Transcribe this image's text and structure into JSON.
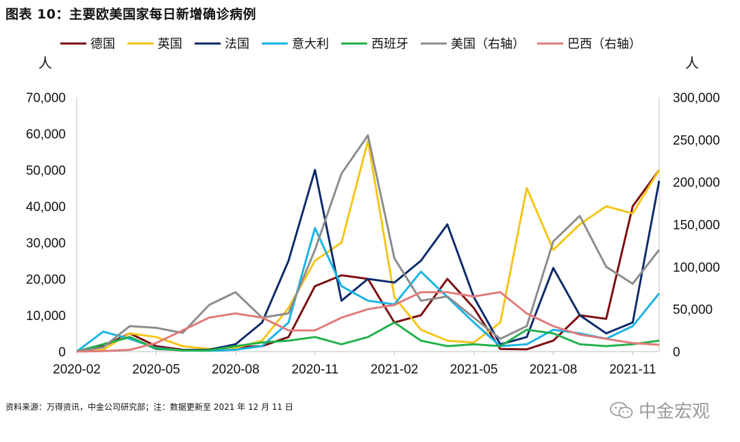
{
  "header": {
    "title": "图表 10：主要欧美国家每日新增确诊病例"
  },
  "units": {
    "left": "人",
    "right": "人"
  },
  "footer": {
    "source": "资料来源：万得资讯，中金公司研究部；注：数据更新至 2021 年 12 月 11 日"
  },
  "watermark": {
    "text": "中金宏观",
    "icon": "wechat-icon"
  },
  "chart_data": {
    "type": "line",
    "x": [
      "2020-02",
      "2020-03",
      "2020-04",
      "2020-05",
      "2020-06",
      "2020-07",
      "2020-08",
      "2020-09",
      "2020-10",
      "2020-11",
      "2020-12",
      "2021-01",
      "2021-02",
      "2021-03",
      "2021-04",
      "2021-05",
      "2021-06",
      "2021-07",
      "2021-08",
      "2021-09",
      "2021-10",
      "2021-11",
      "2021-12"
    ],
    "x_tick_labels": [
      "2020-02",
      "2020-05",
      "2020-08",
      "2020-11",
      "2021-02",
      "2021-05",
      "2021-08",
      "2021-11"
    ],
    "y_left": {
      "ticks": [
        "0",
        "10,000",
        "20,000",
        "30,000",
        "40,000",
        "50,000",
        "60,000",
        "70,000"
      ],
      "range": [
        0,
        70000
      ]
    },
    "y_right": {
      "ticks": [
        "0",
        "50,000",
        "100,000",
        "150,000",
        "200,000",
        "250,000",
        "300,000"
      ],
      "range": [
        0,
        300000
      ]
    },
    "grid": false,
    "legend_position": "top",
    "series": [
      {
        "name": "德国",
        "color": "#7b0c10",
        "axis": "left",
        "values": [
          0,
          1500,
          5000,
          1500,
          500,
          400,
          1200,
          1500,
          4000,
          18000,
          21000,
          20000,
          8000,
          10000,
          20000,
          12000,
          700,
          600,
          3000,
          10000,
          9000,
          40000,
          50000
        ]
      },
      {
        "name": "英国",
        "color": "#f5c518",
        "axis": "left",
        "values": [
          0,
          500,
          5000,
          4000,
          1500,
          700,
          1000,
          3000,
          12000,
          25000,
          30000,
          58000,
          15000,
          6000,
          3000,
          2500,
          8000,
          45000,
          28000,
          35000,
          40000,
          38000,
          50000
        ]
      },
      {
        "name": "法国",
        "color": "#0d2b6b",
        "axis": "left",
        "values": [
          0,
          2000,
          4000,
          700,
          400,
          500,
          2000,
          8000,
          25000,
          50000,
          14000,
          20000,
          19000,
          25000,
          35000,
          15000,
          2000,
          4000,
          23000,
          10000,
          5000,
          8000,
          47000
        ]
      },
      {
        "name": "意大利",
        "color": "#1ab3e6",
        "axis": "left",
        "values": [
          0,
          5500,
          3500,
          1000,
          300,
          200,
          500,
          1500,
          8000,
          34000,
          18000,
          14000,
          13000,
          22000,
          15000,
          8000,
          1500,
          2000,
          6000,
          5000,
          3500,
          7000,
          16000
        ]
      },
      {
        "name": "西班牙",
        "color": "#22b14c",
        "axis": "left",
        "values": [
          0,
          2000,
          4000,
          800,
          300,
          300,
          1500,
          2500,
          3000,
          4000,
          2000,
          4000,
          8000,
          3000,
          1500,
          2000,
          1500,
          6000,
          5000,
          2000,
          1500,
          2000,
          3000
        ]
      },
      {
        "name": "美国（右轴）",
        "color": "#8c8c8c",
        "axis": "right",
        "values": [
          0,
          5000,
          30000,
          28000,
          22000,
          55000,
          70000,
          40000,
          45000,
          120000,
          210000,
          255000,
          110000,
          60000,
          65000,
          40000,
          15000,
          30000,
          130000,
          160000,
          100000,
          80000,
          120000
        ]
      },
      {
        "name": "巴西（右轴）",
        "color": "#e07b7b",
        "axis": "right",
        "values": [
          0,
          500,
          2000,
          10000,
          25000,
          40000,
          45000,
          40000,
          25000,
          25000,
          40000,
          50000,
          55000,
          70000,
          70000,
          65000,
          70000,
          45000,
          30000,
          20000,
          15000,
          10000,
          8000
        ]
      }
    ]
  }
}
